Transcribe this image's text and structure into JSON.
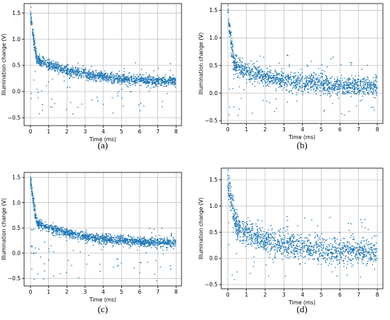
{
  "chart_data": [
    {
      "type": "scatter",
      "panel_label": "(a)",
      "xlabel": "Time (ms)",
      "ylabel": "Illumination change (V)",
      "xlim": [
        -0.35,
        8.3
      ],
      "ylim": [
        -0.65,
        1.68
      ],
      "xticks": [
        0,
        1,
        2,
        3,
        4,
        5,
        6,
        7,
        8
      ],
      "yticks": [
        -0.5,
        0.0,
        0.5,
        1.0,
        1.5
      ],
      "grid": true,
      "marker_color": "#1f77b4",
      "model": {
        "start": 1.55,
        "knee": 0.62,
        "knee_t": 0.35,
        "end": 0.17,
        "tau": 2.6
      },
      "spread": 0.05,
      "outlier_fraction": 0.06,
      "outlier_range": [
        -0.5,
        0.55
      ],
      "point_count": 1500
    },
    {
      "type": "scatter",
      "panel_label": "(b)",
      "xlabel": "Time (ms)",
      "ylabel": "Illumination change (V)",
      "xlim": [
        -0.35,
        8.3
      ],
      "ylim": [
        -0.55,
        1.62
      ],
      "xticks": [
        0,
        1,
        2,
        3,
        4,
        5,
        6,
        7,
        8
      ],
      "yticks": [
        -0.5,
        0.0,
        0.5,
        1.0,
        1.5
      ],
      "grid": true,
      "marker_color": "#1f77b4",
      "model": {
        "start": 1.5,
        "knee": 0.5,
        "knee_t": 0.35,
        "end": 0.1,
        "tau": 2.4
      },
      "spread": 0.08,
      "outlier_fraction": 0.05,
      "outlier_range": [
        -0.4,
        0.7
      ],
      "point_count": 1500
    },
    {
      "type": "scatter",
      "panel_label": "(c)",
      "xlabel": "Time (ms)",
      "ylabel": "Illumination change (V)",
      "xlim": [
        -0.35,
        8.3
      ],
      "ylim": [
        -0.65,
        1.6
      ],
      "xticks": [
        0,
        1,
        2,
        3,
        4,
        5,
        6,
        7,
        8
      ],
      "yticks": [
        -0.5,
        0.0,
        0.5,
        1.0,
        1.5
      ],
      "grid": true,
      "marker_color": "#1f77b4",
      "model": {
        "start": 1.5,
        "knee": 0.6,
        "knee_t": 0.35,
        "end": 0.18,
        "tau": 2.6
      },
      "spread": 0.045,
      "outlier_fraction": 0.07,
      "outlier_range": [
        -0.55,
        0.5
      ],
      "point_count": 1500
    },
    {
      "type": "scatter",
      "panel_label": "(d)",
      "xlabel": "Time (ms)",
      "ylabel": "Illumination change (V)",
      "xlim": [
        -0.35,
        8.3
      ],
      "ylim": [
        -0.58,
        1.72
      ],
      "xticks": [
        0,
        1,
        2,
        3,
        4,
        5,
        6,
        7,
        8
      ],
      "yticks": [
        -0.5,
        0.0,
        0.5,
        1.0,
        1.5
      ],
      "grid": true,
      "marker_color": "#1f77b4",
      "model": {
        "start": 1.55,
        "knee": 0.55,
        "knee_t": 0.5,
        "end": 0.1,
        "tau": 2.5
      },
      "spread": 0.12,
      "outlier_fraction": 0.05,
      "outlier_range": [
        -0.45,
        0.85
      ],
      "point_count": 1400
    }
  ]
}
